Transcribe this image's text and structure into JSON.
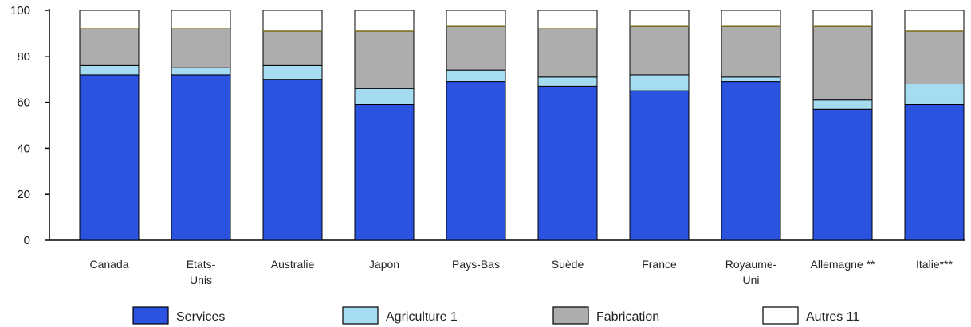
{
  "chart_data": {
    "type": "bar",
    "stacked": true,
    "ylim": [
      0,
      100
    ],
    "yticks": [
      "0",
      "20",
      "40",
      "60",
      "80",
      "100"
    ],
    "categories": [
      {
        "label": "Canada",
        "label2": ""
      },
      {
        "label": "Etats-",
        "label2": "Unis"
      },
      {
        "label": "Australie",
        "label2": ""
      },
      {
        "label": "Japon",
        "label2": ""
      },
      {
        "label": "Pays-Bas",
        "label2": ""
      },
      {
        "label": "Suède",
        "label2": ""
      },
      {
        "label": "France",
        "label2": ""
      },
      {
        "label": "Royaume-",
        "label2": "Uni"
      },
      {
        "label": "Allemagne **",
        "label2": ""
      },
      {
        "label": "Italie***",
        "label2": ""
      }
    ],
    "series": [
      {
        "name": "Services",
        "color": "#2c52e0",
        "values": [
          72,
          72,
          70,
          59,
          69,
          67,
          65,
          69,
          57,
          59
        ]
      },
      {
        "name": "Agriculture 1",
        "color": "#a6dcf2",
        "values": [
          4,
          3,
          6,
          7,
          5,
          4,
          7,
          2,
          4,
          9
        ]
      },
      {
        "name": "Fabrication",
        "color": "#adadad",
        "values": [
          16,
          17,
          15,
          25,
          19,
          21,
          21,
          22,
          32,
          23
        ]
      },
      {
        "name": "Autres 11",
        "color": "#ffffff",
        "values": [
          8,
          8,
          9,
          9,
          7,
          8,
          7,
          7,
          7,
          9
        ]
      }
    ],
    "grid": false,
    "legend_position": "bottom"
  }
}
